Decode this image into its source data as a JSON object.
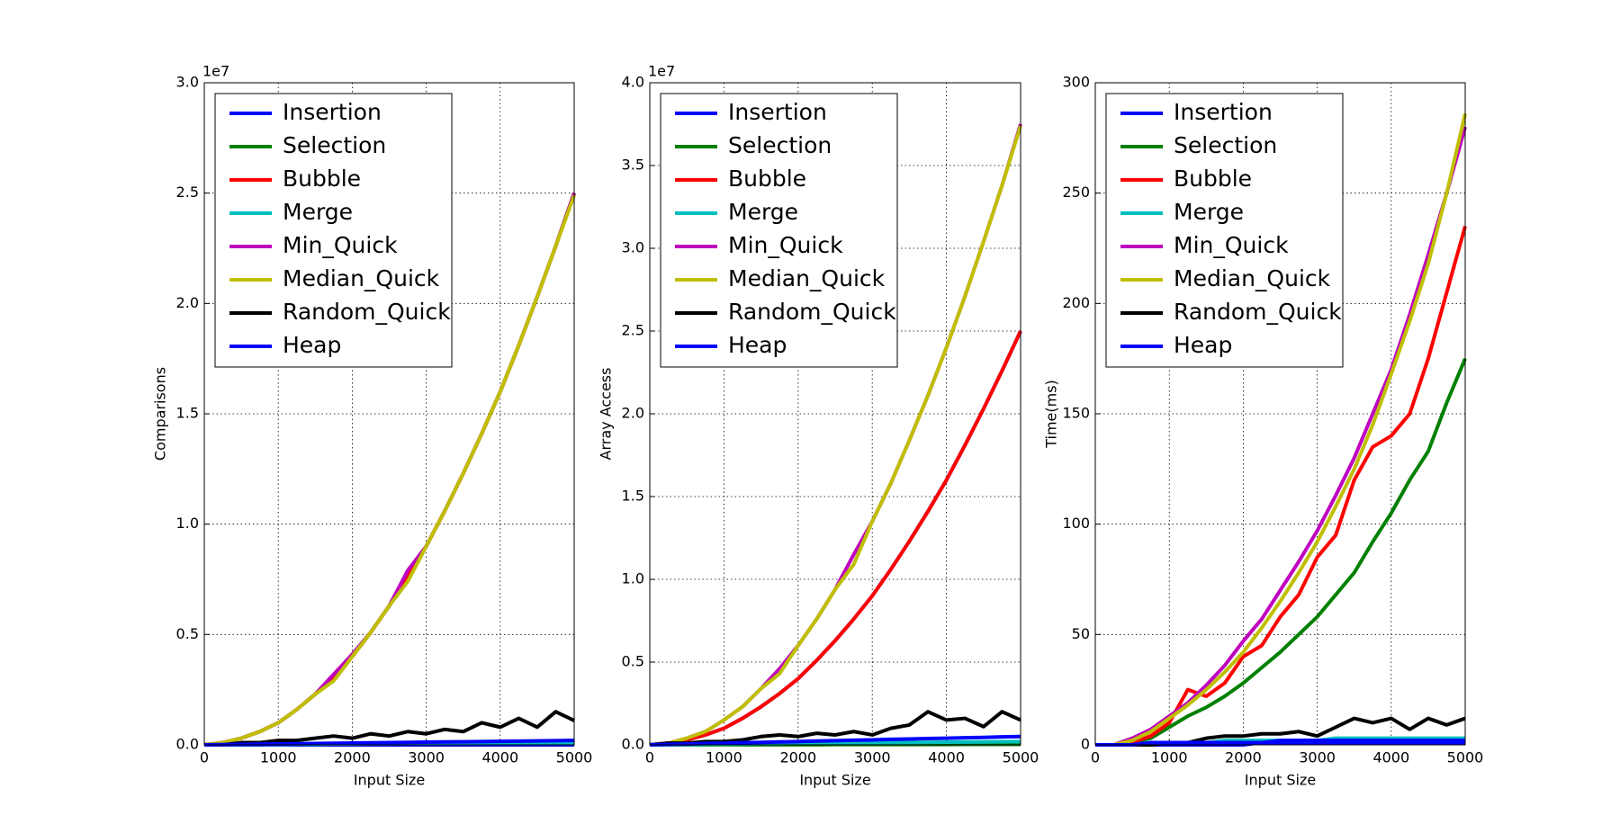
{
  "chart_data": [
    {
      "type": "line",
      "xlabel": "Input Size",
      "ylabel": "Comparisons",
      "offset_text": "1e7",
      "x": [
        0,
        250,
        500,
        750,
        1000,
        1250,
        1500,
        1750,
        2000,
        2250,
        2500,
        2750,
        3000,
        3250,
        3500,
        3750,
        4000,
        4250,
        4500,
        4750,
        5000
      ],
      "xlim": [
        0,
        5000
      ],
      "xticks": [
        0,
        1000,
        2000,
        3000,
        4000,
        5000
      ],
      "ylim": [
        0,
        3
      ],
      "yticks": [
        {
          "value": 0,
          "label": "0.0"
        },
        0.5,
        {
          "value": 1,
          "label": "1.0"
        },
        1.5,
        {
          "value": 2,
          "label": "2.0"
        },
        2.5,
        {
          "value": 3,
          "label": "3.0"
        }
      ],
      "grid": true,
      "legend": "upper left",
      "series": [
        {
          "name": "Insertion",
          "color": "#0000ff",
          "values": [
            0,
            0,
            0,
            0,
            0,
            0,
            0,
            0,
            0,
            0,
            0,
            0,
            0,
            0,
            0,
            0,
            0,
            0,
            0,
            0,
            0
          ]
        },
        {
          "name": "Selection",
          "color": "#008000",
          "values": [
            0,
            0.01,
            0.03,
            0.06,
            0.1,
            0.16,
            0.23,
            0.31,
            0.4,
            0.51,
            0.63,
            0.76,
            0.9,
            1.06,
            1.23,
            1.41,
            1.6,
            1.81,
            2.03,
            2.26,
            2.5
          ]
        },
        {
          "name": "Bubble",
          "color": "#ff0000",
          "values": [
            0,
            0.01,
            0.03,
            0.06,
            0.1,
            0.16,
            0.23,
            0.31,
            0.4,
            0.51,
            0.63,
            0.76,
            0.9,
            1.06,
            1.23,
            1.41,
            1.6,
            1.81,
            2.03,
            2.26,
            2.5
          ]
        },
        {
          "name": "Merge",
          "color": "#00bfbf",
          "values": [
            0,
            0.001,
            0.001,
            0.002,
            0.002,
            0.003,
            0.003,
            0.004,
            0.004,
            0.005,
            0.005,
            0.006,
            0.006,
            0.007,
            0.007,
            0.008,
            0.008,
            0.009,
            0.009,
            0.01,
            0.01
          ]
        },
        {
          "name": "Min_Quick",
          "color": "#bf00bf",
          "values": [
            0,
            0.01,
            0.03,
            0.06,
            0.1,
            0.16,
            0.23,
            0.32,
            0.41,
            0.51,
            0.63,
            0.79,
            0.9,
            1.06,
            1.23,
            1.41,
            1.6,
            1.81,
            2.03,
            2.26,
            2.5
          ]
        },
        {
          "name": "Median_Quick",
          "color": "#bfbf00",
          "values": [
            0,
            0.01,
            0.03,
            0.06,
            0.1,
            0.16,
            0.23,
            0.29,
            0.4,
            0.51,
            0.63,
            0.74,
            0.9,
            1.06,
            1.23,
            1.41,
            1.6,
            1.81,
            2.03,
            2.26,
            2.49
          ]
        },
        {
          "name": "Random_Quick",
          "color": "#000000",
          "values": [
            0,
            0,
            0.01,
            0.01,
            0.02,
            0.02,
            0.03,
            0.04,
            0.03,
            0.05,
            0.04,
            0.06,
            0.05,
            0.07,
            0.06,
            0.1,
            0.08,
            0.12,
            0.08,
            0.15,
            0.11
          ]
        },
        {
          "name": "Heap",
          "color": "#0000ff",
          "values": [
            0,
            0.001,
            0.002,
            0.003,
            0.004,
            0.005,
            0.006,
            0.007,
            0.008,
            0.009,
            0.01,
            0.011,
            0.012,
            0.013,
            0.014,
            0.015,
            0.016,
            0.017,
            0.018,
            0.019,
            0.02
          ]
        }
      ]
    },
    {
      "type": "line",
      "xlabel": "Input Size",
      "ylabel": "Array Access",
      "offset_text": "1e7",
      "x": [
        0,
        250,
        500,
        750,
        1000,
        1250,
        1500,
        1750,
        2000,
        2250,
        2500,
        2750,
        3000,
        3250,
        3500,
        3750,
        4000,
        4250,
        4500,
        4750,
        5000
      ],
      "xlim": [
        0,
        5000
      ],
      "xticks": [
        0,
        1000,
        2000,
        3000,
        4000,
        5000
      ],
      "ylim": [
        0,
        4
      ],
      "yticks": [
        {
          "value": 0,
          "label": "0.0"
        },
        0.5,
        {
          "value": 1,
          "label": "1.0"
        },
        1.5,
        {
          "value": 2,
          "label": "2.0"
        },
        2.5,
        {
          "value": 3,
          "label": "3.0"
        },
        3.5,
        {
          "value": 4,
          "label": "4.0"
        }
      ],
      "grid": true,
      "legend": "upper left",
      "series": [
        {
          "name": "Insertion",
          "color": "#0000ff",
          "values": [
            0,
            0.01,
            0.03,
            0.06,
            0.1,
            0.16,
            0.23,
            0.31,
            0.4,
            0.51,
            0.63,
            0.76,
            0.9,
            1.06,
            1.23,
            1.41,
            1.6,
            1.81,
            2.03,
            2.26,
            2.5
          ]
        },
        {
          "name": "Selection",
          "color": "#008000",
          "values": [
            0,
            0,
            0,
            0,
            0.001,
            0.001,
            0.001,
            0.001,
            0.001,
            0.001,
            0.002,
            0.002,
            0.002,
            0.002,
            0.002,
            0.002,
            0.002,
            0.003,
            0.003,
            0.003,
            0.003
          ]
        },
        {
          "name": "Bubble",
          "color": "#ff0000",
          "values": [
            0,
            0.01,
            0.03,
            0.06,
            0.1,
            0.16,
            0.23,
            0.31,
            0.4,
            0.51,
            0.63,
            0.76,
            0.9,
            1.06,
            1.23,
            1.41,
            1.6,
            1.81,
            2.03,
            2.26,
            2.5
          ]
        },
        {
          "name": "Merge",
          "color": "#00bfbf",
          "values": [
            0,
            0.001,
            0.002,
            0.003,
            0.004,
            0.005,
            0.006,
            0.007,
            0.008,
            0.009,
            0.01,
            0.011,
            0.012,
            0.013,
            0.014,
            0.015,
            0.016,
            0.017,
            0.018,
            0.019,
            0.02
          ]
        },
        {
          "name": "Min_Quick",
          "color": "#bf00bf",
          "values": [
            0,
            0.01,
            0.04,
            0.08,
            0.15,
            0.23,
            0.34,
            0.46,
            0.6,
            0.76,
            0.94,
            1.15,
            1.35,
            1.58,
            1.84,
            2.11,
            2.4,
            2.71,
            3.04,
            3.38,
            3.75
          ]
        },
        {
          "name": "Median_Quick",
          "color": "#bfbf00",
          "values": [
            0,
            0.01,
            0.04,
            0.08,
            0.15,
            0.23,
            0.34,
            0.43,
            0.6,
            0.76,
            0.94,
            1.09,
            1.35,
            1.58,
            1.84,
            2.11,
            2.4,
            2.71,
            3.04,
            3.38,
            3.74
          ]
        },
        {
          "name": "Random_Quick",
          "color": "#000000",
          "values": [
            0,
            0.01,
            0.01,
            0.02,
            0.02,
            0.03,
            0.05,
            0.06,
            0.05,
            0.07,
            0.06,
            0.08,
            0.06,
            0.1,
            0.12,
            0.2,
            0.15,
            0.16,
            0.11,
            0.2,
            0.15
          ]
        },
        {
          "name": "Heap",
          "color": "#0000ff",
          "values": [
            0,
            0.003,
            0.005,
            0.008,
            0.01,
            0.013,
            0.015,
            0.018,
            0.02,
            0.023,
            0.025,
            0.028,
            0.03,
            0.033,
            0.035,
            0.038,
            0.04,
            0.043,
            0.045,
            0.048,
            0.05
          ]
        }
      ]
    },
    {
      "type": "line",
      "xlabel": "Input Size",
      "ylabel": "Time(ms)",
      "x": [
        0,
        250,
        500,
        750,
        1000,
        1250,
        1500,
        1750,
        2000,
        2250,
        2500,
        2750,
        3000,
        3250,
        3500,
        3750,
        4000,
        4250,
        4500,
        4750,
        5000
      ],
      "xlim": [
        0,
        5000
      ],
      "xticks": [
        0,
        1000,
        2000,
        3000,
        4000,
        5000
      ],
      "ylim": [
        0,
        300
      ],
      "yticks": [
        0,
        50,
        100,
        150,
        200,
        250,
        300
      ],
      "grid": true,
      "legend": "upper left",
      "series": [
        {
          "name": "Insertion",
          "color": "#0000ff",
          "values": [
            0,
            0,
            0,
            0,
            0,
            0,
            0,
            0,
            0,
            1,
            1,
            1,
            1,
            1,
            1,
            1,
            1,
            1,
            1,
            1,
            1
          ]
        },
        {
          "name": "Selection",
          "color": "#008000",
          "values": [
            0,
            0,
            1,
            3,
            8,
            13,
            17,
            22,
            28,
            35,
            42,
            50,
            58,
            68,
            78,
            92,
            105,
            120,
            133,
            155,
            175
          ]
        },
        {
          "name": "Bubble",
          "color": "#ff0000",
          "values": [
            0,
            0,
            1,
            4,
            10,
            25,
            22,
            28,
            40,
            45,
            58,
            68,
            85,
            95,
            120,
            135,
            140,
            150,
            175,
            205,
            235
          ]
        },
        {
          "name": "Merge",
          "color": "#00bfbf",
          "values": [
            0,
            0,
            0,
            1,
            1,
            1,
            1,
            2,
            2,
            2,
            2,
            2,
            2,
            3,
            3,
            3,
            3,
            3,
            3,
            3,
            3
          ]
        },
        {
          "name": "Min_Quick",
          "color": "#bf00bf",
          "values": [
            0,
            0,
            3,
            7,
            13,
            19,
            27,
            36,
            47,
            57,
            70,
            83,
            97,
            113,
            130,
            150,
            170,
            195,
            222,
            250,
            280
          ]
        },
        {
          "name": "Median_Quick",
          "color": "#bfbf00",
          "values": [
            0,
            0,
            2,
            6,
            12,
            18,
            25,
            33,
            42,
            53,
            65,
            78,
            92,
            108,
            125,
            145,
            168,
            192,
            218,
            250,
            286
          ]
        },
        {
          "name": "Random_Quick",
          "color": "#000000",
          "values": [
            0,
            0,
            0,
            0,
            1,
            1,
            3,
            4,
            4,
            5,
            5,
            6,
            4,
            8,
            12,
            10,
            12,
            7,
            12,
            9,
            12
          ]
        },
        {
          "name": "Heap",
          "color": "#0000ff",
          "values": [
            0,
            0,
            0,
            1,
            1,
            1,
            1,
            1,
            1,
            1,
            2,
            2,
            2,
            2,
            2,
            2,
            2,
            2,
            2,
            2,
            2
          ]
        }
      ]
    }
  ]
}
